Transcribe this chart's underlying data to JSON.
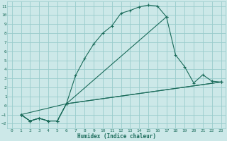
{
  "xlabel": "Humidex (Indice chaleur)",
  "bg_color": "#cce8e8",
  "grid_color": "#99cccc",
  "line_color": "#1a6b5a",
  "xlim": [
    -0.5,
    23.5
  ],
  "ylim": [
    -2.5,
    11.5
  ],
  "xticks": [
    0,
    1,
    2,
    3,
    4,
    5,
    6,
    7,
    8,
    9,
    10,
    11,
    12,
    13,
    14,
    15,
    16,
    17,
    18,
    19,
    20,
    21,
    22,
    23
  ],
  "yticks": [
    -2,
    -1,
    0,
    1,
    2,
    3,
    4,
    5,
    6,
    7,
    8,
    9,
    10,
    11
  ],
  "curve1_x": [
    1,
    2,
    3,
    4,
    5,
    6,
    7,
    8,
    9,
    10,
    11,
    12,
    13,
    14,
    15,
    16,
    17
  ],
  "curve1_y": [
    -1,
    -1.7,
    -1.4,
    -1.7,
    -1.7,
    0.2,
    3.3,
    5.2,
    6.8,
    8.0,
    8.8,
    10.2,
    10.5,
    10.9,
    11.1,
    11.0,
    9.8
  ],
  "curve2_x": [
    1,
    2,
    3,
    4,
    5,
    6,
    17,
    18,
    19,
    20,
    21,
    22,
    23
  ],
  "curve2_y": [
    -1,
    -1.7,
    -1.4,
    -1.7,
    -1.7,
    0.2,
    9.8,
    5.6,
    4.3,
    2.5,
    3.4,
    2.7,
    2.6
  ],
  "curve3_x": [
    1,
    2,
    3,
    4,
    5,
    6,
    23
  ],
  "curve3_y": [
    -1,
    -1.7,
    -1.4,
    -1.7,
    -1.7,
    0.2,
    2.6
  ],
  "curve4_x": [
    1,
    6,
    23
  ],
  "curve4_y": [
    -1,
    0.2,
    2.6
  ]
}
